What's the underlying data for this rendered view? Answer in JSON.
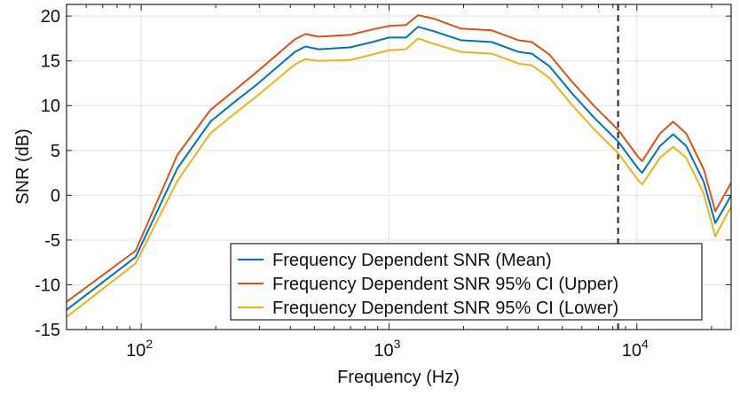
{
  "chart_data": {
    "type": "line",
    "title": "",
    "xlabel": "Frequency (Hz)",
    "ylabel": "SNR (dB)",
    "xscale": "log",
    "xlim": [
      50,
      24000
    ],
    "ylim": [
      -15,
      21.3
    ],
    "grid": true,
    "legend_position": "bottom-right",
    "xticks": [
      {
        "value": 100,
        "base": "10",
        "exp": "2"
      },
      {
        "value": 1000,
        "base": "10",
        "exp": "3"
      },
      {
        "value": 10000,
        "base": "10",
        "exp": "4"
      }
    ],
    "yticks": [
      "-15",
      "-10",
      "-5",
      "0",
      "5",
      "10",
      "15",
      "20"
    ],
    "vline": {
      "x": 8400,
      "style": "dashed",
      "color": "#222222"
    },
    "x": [
      50,
      95,
      140,
      190,
      233,
      294,
      417,
      460,
      520,
      695,
      855,
      1000,
      1170,
      1310,
      1520,
      1950,
      2600,
      3330,
      3770,
      4440,
      5460,
      6700,
      8400,
      10100,
      10500,
      12400,
      14000,
      15800,
      18600,
      20700,
      22400,
      24000
    ],
    "series": [
      {
        "name": "Frequency Dependent SNR (Mean)",
        "color": "#0072BD",
        "values": [
          -12.8,
          -6.9,
          3.0,
          8.2,
          10.2,
          12.4,
          16.0,
          16.6,
          16.3,
          16.5,
          17.1,
          17.6,
          17.6,
          18.8,
          18.3,
          17.3,
          17.1,
          16.0,
          15.8,
          14.4,
          11.4,
          8.7,
          6.0,
          3.0,
          2.5,
          5.5,
          6.8,
          5.5,
          1.5,
          -3.1,
          -1.5,
          0.0
        ]
      },
      {
        "name": "Frequency Dependent SNR 95% CI (Upper)",
        "color": "#D95319",
        "values": [
          -11.9,
          -6.2,
          4.5,
          9.5,
          11.5,
          13.8,
          17.4,
          18.0,
          17.7,
          17.9,
          18.5,
          18.9,
          19.0,
          20.1,
          19.7,
          18.6,
          18.4,
          17.3,
          17.1,
          15.7,
          12.7,
          10.0,
          7.3,
          4.3,
          3.8,
          6.9,
          8.2,
          6.9,
          2.9,
          -1.8,
          -0.1,
          1.4
        ]
      },
      {
        "name": "Frequency Dependent SNR 95% CI (Lower)",
        "color": "#EDB120",
        "values": [
          -13.6,
          -7.6,
          1.6,
          6.9,
          8.9,
          11.1,
          14.6,
          15.2,
          15.0,
          15.1,
          15.7,
          16.2,
          16.3,
          17.5,
          16.9,
          16.0,
          15.8,
          14.7,
          14.5,
          13.1,
          10.1,
          7.4,
          4.7,
          1.7,
          1.2,
          4.2,
          5.4,
          4.2,
          0.2,
          -4.6,
          -2.8,
          -1.3
        ]
      }
    ]
  }
}
